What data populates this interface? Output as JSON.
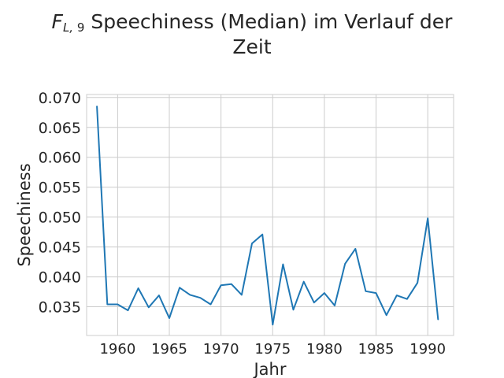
{
  "chart_data": {
    "type": "line",
    "title": {
      "var": "F",
      "var_sub_italic": "L,",
      "var_sub_plain": "9",
      "line1_rest": "Speechiness (Median) im Verlauf der",
      "line2": "Zeit"
    },
    "xlabel": "Jahr",
    "ylabel": "Speechiness",
    "xlim": [
      1957,
      1992.5
    ],
    "ylim": [
      0.0302,
      0.0705
    ],
    "xticks": [
      1960,
      1965,
      1970,
      1975,
      1980,
      1985,
      1990
    ],
    "yticks": [
      0.035,
      0.04,
      0.045,
      0.05,
      0.055,
      0.06,
      0.065,
      0.07
    ],
    "ytick_labels": [
      "0.035",
      "0.040",
      "0.045",
      "0.050",
      "0.055",
      "0.060",
      "0.065",
      "0.070"
    ],
    "grid": true,
    "series": [
      {
        "color": "#1f77b4",
        "x": [
          1958,
          1959,
          1960,
          1961,
          1962,
          1963,
          1964,
          1965,
          1966,
          1967,
          1968,
          1969,
          1970,
          1971,
          1972,
          1973,
          1974,
          1975,
          1976,
          1977,
          1978,
          1979,
          1980,
          1981,
          1982,
          1983,
          1984,
          1985,
          1986,
          1987,
          1988,
          1989,
          1990,
          1991
        ],
        "values": [
          0.0685,
          0.0354,
          0.0354,
          0.0344,
          0.0381,
          0.0349,
          0.0369,
          0.0331,
          0.0382,
          0.037,
          0.0365,
          0.0354,
          0.0386,
          0.0388,
          0.037,
          0.0456,
          0.0471,
          0.032,
          0.0421,
          0.0345,
          0.0392,
          0.0357,
          0.0373,
          0.0352,
          0.0422,
          0.0447,
          0.0376,
          0.0373,
          0.0336,
          0.0369,
          0.0363,
          0.039,
          0.0498,
          0.0329
        ]
      }
    ]
  }
}
